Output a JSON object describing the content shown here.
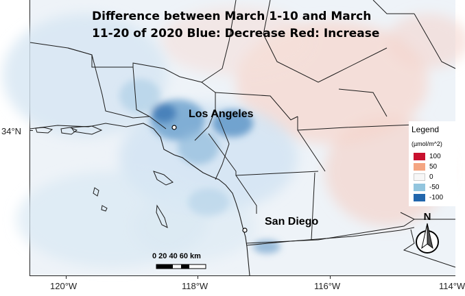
{
  "title": "Difference between March 1-10 and  March 11-20 of 2020 Blue: Decrease Red: Increase",
  "cities": [
    {
      "name": "Los Angeles",
      "marker-icon": "city-dot-icon"
    },
    {
      "name": "San Diego",
      "marker-icon": "city-dot-icon"
    }
  ],
  "legend": {
    "title": "Legend",
    "unit": "(µmol/m^2)",
    "entries": [
      {
        "label": "100",
        "color": "#c8102e"
      },
      {
        "label": "50",
        "color": "#f4a582"
      },
      {
        "label": "0",
        "color": "#f7f7f7"
      },
      {
        "label": "-50",
        "color": "#92c5de"
      },
      {
        "label": "-100",
        "color": "#2166ac"
      }
    ]
  },
  "axes": {
    "x_ticks": [
      "120°W",
      "118°W",
      "116°W",
      "114°W"
    ],
    "y_ticks": [
      "34°N"
    ]
  },
  "scalebar": {
    "labels": "0   20  40  60 km"
  },
  "north_arrow": {
    "label": "N",
    "icon": "north-arrow-icon"
  }
}
